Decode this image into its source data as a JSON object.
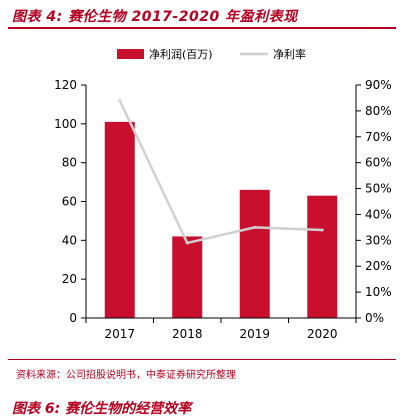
{
  "page": {
    "figure_title": "图表 4: 赛伦生物 2017-2020 年盈利表现",
    "source": "资料来源：公司招股说明书，中泰证券研究所整理",
    "next_figure_title": "图表 6: 赛伦生物的经营效率"
  },
  "colors": {
    "accent": "#b5001f",
    "bar": "#c8102e",
    "line": "#d0d0d0"
  },
  "chart_data": {
    "type": "bar",
    "categories": [
      "2017",
      "2018",
      "2019",
      "2020"
    ],
    "series": [
      {
        "name": "净利润(百万)",
        "type": "bar",
        "axis": "left",
        "values": [
          101,
          42,
          66,
          63
        ]
      },
      {
        "name": "净利率",
        "type": "line",
        "axis": "right",
        "values": [
          84,
          29,
          35,
          34
        ]
      }
    ],
    "y_left": {
      "min": 0,
      "max": 120,
      "ticks": [
        "0",
        "20",
        "40",
        "60",
        "80",
        "100",
        "120"
      ]
    },
    "y_right": {
      "min": 0,
      "max": 90,
      "ticks": [
        "0%",
        "10%",
        "20%",
        "30%",
        "40%",
        "50%",
        "60%",
        "70%",
        "80%",
        "90%"
      ]
    },
    "legend": "top",
    "grid": false
  }
}
